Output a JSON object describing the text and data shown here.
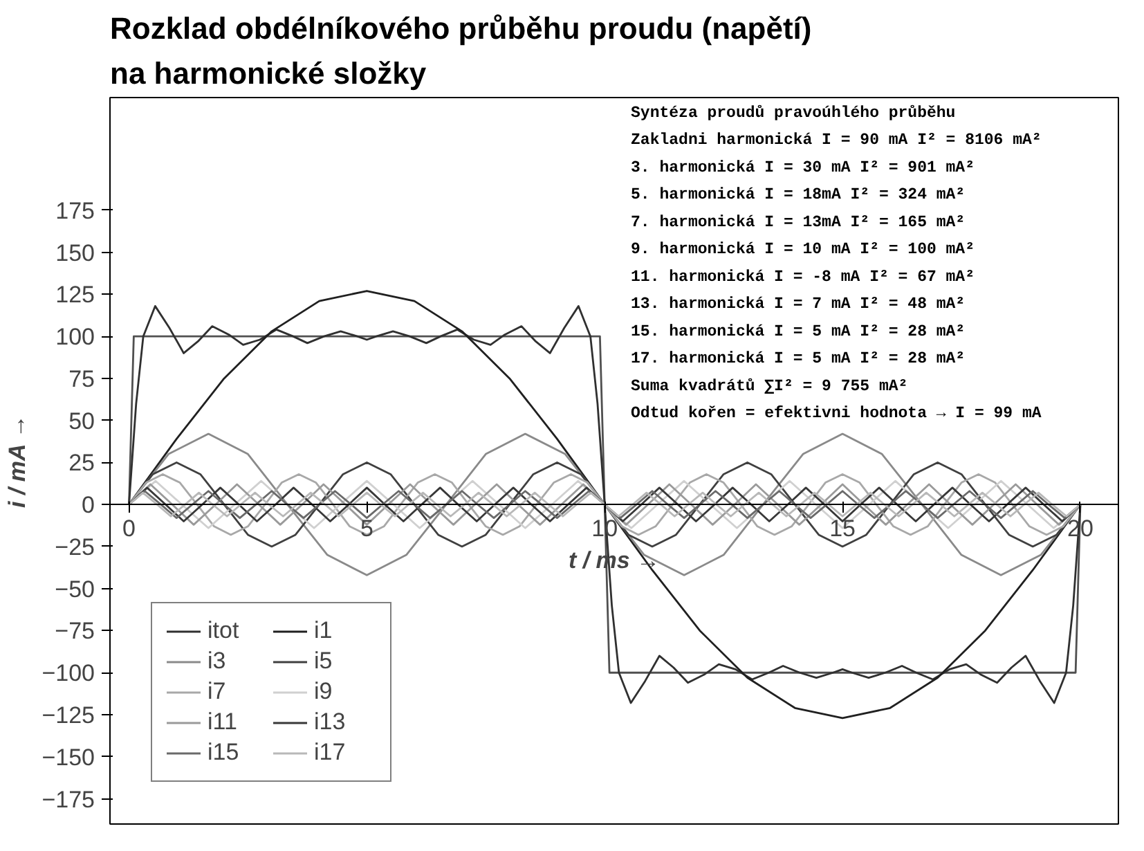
{
  "chart_data": {
    "type": "line",
    "title": "Rozklad obdélníkového průběhu proudu (napětí)\nna harmonické složky",
    "xlabel": "t / ms →",
    "ylabel": "i / mA →",
    "xlim": [
      -0.4,
      20.8
    ],
    "xticks": [
      0,
      5,
      10,
      15,
      20
    ],
    "ylim": [
      -190,
      242
    ],
    "yticks": [
      -175,
      -150,
      -125,
      -100,
      -75,
      -50,
      -25,
      0,
      25,
      50,
      75,
      100,
      125,
      150,
      175
    ],
    "grid": false,
    "legend": "bottom left",
    "annotations": [
      "Syntéza proudů pravoúhlého průběhu",
      "Zakladni harmonická  I = 90 mA  I² = 8106 mA²",
      "  3. harmonická      I = 30 mA  I² =  901 mA²",
      "  5. harmonická      I = 18mA   I² =  324 mA²",
      "  7. harmonická      I = 13mA   I² =  165 mA²",
      "  9. harmonická      I = 10 mA  I² =  100 mA²",
      " 11. harmonická      I = -8 mA  I² =   67 mA²",
      " 13. harmonická      I = 7 mA   I² =   48 mA²",
      " 15. harmonická      I = 5 mA   I² =   28 mA²",
      " 17. harmonická      I = 5 mA   I² =   28 mA²",
      "Suma kvadrátů               ∑I² = 9 755 mA²",
      "Odtud kořen = efektivni hodnota →  I =  99 mA"
    ],
    "series": [
      {
        "color": "#505050",
        "x": [
          0,
          0.1,
          9.9,
          10.1,
          19.9,
          20
        ],
        "values": [
          0,
          100,
          100,
          -100,
          -100,
          0
        ]
      },
      {
        "name": "itot",
        "color": "#303030",
        "x": [
          0,
          0.15,
          0.3,
          0.55,
          0.85,
          1.15,
          1.45,
          1.75,
          2.1,
          2.4,
          2.75,
          3.1,
          3.45,
          3.75,
          4.1,
          4.45,
          4.8,
          5,
          5.2,
          5.55,
          5.9,
          6.25,
          6.55,
          6.9,
          7.25,
          7.6,
          7.9,
          8.25,
          8.55,
          8.85,
          9.15,
          9.45,
          9.7,
          9.85,
          10,
          10.15,
          10.3,
          10.55,
          10.85,
          11.15,
          11.45,
          11.75,
          12.1,
          12.4,
          12.75,
          13.1,
          13.45,
          13.75,
          14.1,
          14.45,
          14.8,
          15,
          15.2,
          15.55,
          15.9,
          16.25,
          16.55,
          16.9,
          17.25,
          17.6,
          17.9,
          18.25,
          18.55,
          18.85,
          19.15,
          19.45,
          19.7,
          19.85,
          20
        ],
        "values": [
          0,
          60,
          100,
          118,
          105,
          90,
          97,
          106,
          101,
          95,
          98,
          104,
          100,
          96,
          100,
          103,
          100,
          98,
          100,
          103,
          100,
          96,
          100,
          104,
          98,
          95,
          101,
          106,
          97,
          90,
          105,
          118,
          100,
          60,
          0,
          -60,
          -100,
          -118,
          -105,
          -90,
          -97,
          -106,
          -101,
          -95,
          -98,
          -104,
          -100,
          -96,
          -100,
          -103,
          -100,
          -98,
          -100,
          -103,
          -100,
          -96,
          -100,
          -104,
          -98,
          -95,
          -101,
          -106,
          -97,
          -90,
          -105,
          -118,
          -100,
          -60,
          0
        ]
      },
      {
        "name": "i1",
        "color": "#202020",
        "x": [
          0,
          1,
          2,
          3,
          4,
          5,
          6,
          7,
          8,
          9,
          10,
          11,
          12,
          13,
          14,
          15,
          16,
          17,
          18,
          19,
          20
        ],
        "values": [
          0,
          39,
          75,
          103,
          121,
          127,
          121,
          103,
          75,
          39,
          0,
          -39,
          -75,
          -103,
          -121,
          -127,
          -121,
          -103,
          -75,
          -39,
          0
        ]
      },
      {
        "name": "i3",
        "color": "#8a8a8a",
        "x": [
          0,
          0.83,
          1.67,
          2.5,
          3.33,
          4.17,
          5,
          5.83,
          6.67,
          7.5,
          8.33,
          9.17,
          10,
          10.83,
          11.67,
          12.5,
          13.33,
          14.17,
          15,
          15.83,
          16.67,
          17.5,
          18.33,
          19.17,
          20
        ],
        "values": [
          0,
          30,
          42,
          30,
          0,
          -30,
          -42,
          -30,
          0,
          30,
          42,
          30,
          0,
          -30,
          -42,
          -30,
          0,
          30,
          42,
          30,
          0,
          -30,
          -42,
          -30,
          0
        ]
      },
      {
        "name": "i5",
        "color": "#404040",
        "x": [
          0,
          0.5,
          1,
          1.5,
          2,
          2.5,
          3,
          3.5,
          4,
          4.5,
          5,
          5.5,
          6,
          6.5,
          7,
          7.5,
          8,
          8.5,
          9,
          9.5,
          10,
          10.5,
          11,
          11.5,
          12,
          12.5,
          13,
          13.5,
          14,
          14.5,
          15,
          15.5,
          16,
          16.5,
          17,
          17.5,
          18,
          18.5,
          19,
          19.5,
          20
        ],
        "values": [
          0,
          18,
          25,
          18,
          0,
          -18,
          -25,
          -18,
          0,
          18,
          25,
          18,
          0,
          -18,
          -25,
          -18,
          0,
          18,
          25,
          18,
          0,
          -18,
          -25,
          -18,
          0,
          18,
          25,
          18,
          0,
          -18,
          -25,
          -18,
          0,
          18,
          25,
          18,
          0,
          -18,
          -25,
          -18,
          0
        ]
      },
      {
        "name": "i7",
        "color": "#a8a8a8",
        "x": [
          0,
          0.36,
          0.71,
          1.07,
          1.43,
          1.79,
          2.14,
          2.5,
          2.86,
          3.21,
          3.57,
          3.93,
          4.29,
          4.64,
          5,
          5.36,
          5.71,
          6.07,
          6.43,
          6.79,
          7.14,
          7.5,
          7.86,
          8.21,
          8.57,
          8.93,
          9.29,
          9.64,
          10,
          10.36,
          10.71,
          11.07,
          11.43,
          11.79,
          12.14,
          12.5,
          12.86,
          13.21,
          13.57,
          13.93,
          14.29,
          14.64,
          15,
          15.36,
          15.71,
          16.07,
          16.43,
          16.79,
          17.14,
          17.5,
          17.86,
          18.21,
          18.57,
          18.93,
          19.29,
          19.64,
          20
        ],
        "values": [
          0,
          13,
          18,
          13,
          0,
          -13,
          -18,
          -13,
          0,
          13,
          18,
          13,
          0,
          -13,
          -18,
          -13,
          0,
          13,
          18,
          13,
          0,
          -13,
          -18,
          -13,
          0,
          13,
          18,
          13,
          0,
          -13,
          -18,
          -13,
          0,
          13,
          18,
          13,
          0,
          -13,
          -18,
          -13,
          0,
          13,
          18,
          13,
          0,
          -13,
          -18,
          -13,
          0,
          13,
          18,
          13,
          0,
          -13,
          -18,
          -13,
          0
        ]
      },
      {
        "name": "i9",
        "color": "#d0d0d0",
        "x": [
          0,
          0.56,
          1.11,
          1.67,
          2.22,
          2.78,
          3.33,
          3.89,
          4.44,
          5,
          5.56,
          6.11,
          6.67,
          7.22,
          7.78,
          8.33,
          8.89,
          9.44,
          10,
          10.56,
          11.11,
          11.67,
          12.22,
          12.78,
          13.33,
          13.89,
          14.44,
          15,
          15.56,
          16.11,
          16.67,
          17.22,
          17.78,
          18.33,
          18.89,
          19.44,
          20
        ],
        "values": [
          0,
          14,
          0,
          -14,
          0,
          14,
          0,
          -14,
          0,
          14,
          0,
          -14,
          0,
          14,
          0,
          -14,
          0,
          14,
          0,
          -14,
          0,
          14,
          0,
          -14,
          0,
          14,
          0,
          -14,
          0,
          14,
          0,
          -14,
          0,
          14,
          0,
          -14,
          0
        ]
      },
      {
        "name": "i11",
        "color": "#9a9a9a",
        "x": [
          0,
          0.45,
          0.91,
          1.36,
          1.82,
          2.27,
          2.73,
          3.18,
          3.64,
          4.09,
          4.55,
          5,
          5.45,
          5.91,
          6.36,
          6.82,
          7.27,
          7.73,
          8.18,
          8.64,
          9.09,
          9.55,
          10,
          10.45,
          10.91,
          11.36,
          11.82,
          12.27,
          12.73,
          13.18,
          13.64,
          14.09,
          14.55,
          15,
          15.45,
          15.91,
          16.36,
          16.82,
          17.27,
          17.73,
          18.18,
          18.64,
          19.09,
          19.55,
          20
        ],
        "values": [
          0,
          12,
          0,
          -12,
          0,
          12,
          0,
          -12,
          0,
          12,
          0,
          -12,
          0,
          12,
          0,
          -12,
          0,
          12,
          0,
          -12,
          0,
          12,
          0,
          -12,
          0,
          12,
          0,
          -12,
          0,
          12,
          0,
          -12,
          0,
          12,
          0,
          -12,
          0,
          12,
          0,
          -12,
          0,
          12,
          0,
          -12,
          0
        ]
      },
      {
        "name": "i13",
        "color": "#383838",
        "x": [
          0,
          0.38,
          0.77,
          1.15,
          1.54,
          1.92,
          2.31,
          2.69,
          3.08,
          3.46,
          3.85,
          4.23,
          4.62,
          5,
          5.38,
          5.77,
          6.15,
          6.54,
          6.92,
          7.31,
          7.69,
          8.08,
          8.46,
          8.85,
          9.23,
          9.62,
          10,
          10.38,
          10.77,
          11.15,
          11.54,
          11.92,
          12.31,
          12.69,
          13.08,
          13.46,
          13.85,
          14.23,
          14.62,
          15,
          15.38,
          15.77,
          16.15,
          16.54,
          16.92,
          17.31,
          17.69,
          18.08,
          18.46,
          18.85,
          19.23,
          19.62,
          20
        ],
        "values": [
          0,
          10,
          0,
          -10,
          0,
          10,
          0,
          -10,
          0,
          10,
          0,
          -10,
          0,
          10,
          0,
          -10,
          0,
          10,
          0,
          -10,
          0,
          10,
          0,
          -10,
          0,
          10,
          0,
          -10,
          0,
          10,
          0,
          -10,
          0,
          10,
          0,
          -10,
          0,
          10,
          0,
          -10,
          0,
          10,
          0,
          -10,
          0,
          10,
          0,
          -10,
          0,
          10,
          0,
          -10,
          0
        ]
      },
      {
        "name": "i15",
        "color": "#6a6a6a",
        "x": [
          0,
          0.33,
          0.67,
          1,
          1.33,
          1.67,
          2,
          2.33,
          2.67,
          3,
          3.33,
          3.67,
          4,
          4.33,
          4.67,
          5,
          5.33,
          5.67,
          6,
          6.33,
          6.67,
          7,
          7.33,
          7.67,
          8,
          8.33,
          8.67,
          9,
          9.33,
          9.67,
          10,
          10.33,
          10.67,
          11,
          11.33,
          11.67,
          12,
          12.33,
          12.67,
          13,
          13.33,
          13.67,
          14,
          14.33,
          14.67,
          15,
          15.33,
          15.67,
          16,
          16.33,
          16.67,
          17,
          17.33,
          17.67,
          18,
          18.33,
          18.67,
          19,
          19.33,
          19.67,
          20
        ],
        "values": [
          0,
          8,
          0,
          -8,
          0,
          8,
          0,
          -8,
          0,
          8,
          0,
          -8,
          0,
          8,
          0,
          -8,
          0,
          8,
          0,
          -8,
          0,
          8,
          0,
          -8,
          0,
          8,
          0,
          -8,
          0,
          8,
          0,
          -8,
          0,
          8,
          0,
          -8,
          0,
          8,
          0,
          -8,
          0,
          8,
          0,
          -8,
          0,
          8,
          0,
          -8,
          0,
          8,
          0,
          -8,
          0,
          8,
          0,
          -8,
          0,
          8,
          0,
          -8,
          0
        ]
      },
      {
        "name": "i17",
        "color": "#b8b8b8",
        "x": [
          0,
          0.29,
          0.59,
          0.88,
          1.18,
          1.47,
          1.76,
          2.06,
          2.35,
          2.65,
          2.94,
          3.24,
          3.53,
          3.82,
          4.12,
          4.41,
          4.71,
          5,
          5.29,
          5.59,
          5.88,
          6.18,
          6.47,
          6.76,
          7.06,
          7.35,
          7.65,
          7.94,
          8.24,
          8.53,
          8.82,
          9.12,
          9.41,
          9.71,
          10,
          10.29,
          10.59,
          10.88,
          11.18,
          11.47,
          11.76,
          12.06,
          12.35,
          12.65,
          12.94,
          13.24,
          13.53,
          13.82,
          14.12,
          14.41,
          14.71,
          15,
          15.29,
          15.59,
          15.88,
          16.18,
          16.47,
          16.76,
          17.06,
          17.35,
          17.65,
          17.94,
          18.24,
          18.53,
          18.82,
          19.12,
          19.41,
          19.71,
          20
        ],
        "values": [
          0,
          7,
          0,
          -7,
          0,
          7,
          0,
          -7,
          0,
          7,
          0,
          -7,
          0,
          7,
          0,
          -7,
          0,
          7,
          0,
          -7,
          0,
          7,
          0,
          -7,
          0,
          7,
          0,
          -7,
          0,
          7,
          0,
          -7,
          0,
          7,
          0,
          -7,
          0,
          7,
          0,
          -7,
          0,
          7,
          0,
          -7,
          0,
          7,
          0,
          -7,
          0,
          7,
          0,
          -7,
          0,
          7,
          0,
          -7,
          0,
          7,
          0,
          -7,
          0,
          7,
          0,
          -7,
          0,
          7,
          0,
          -7,
          0
        ]
      }
    ]
  }
}
